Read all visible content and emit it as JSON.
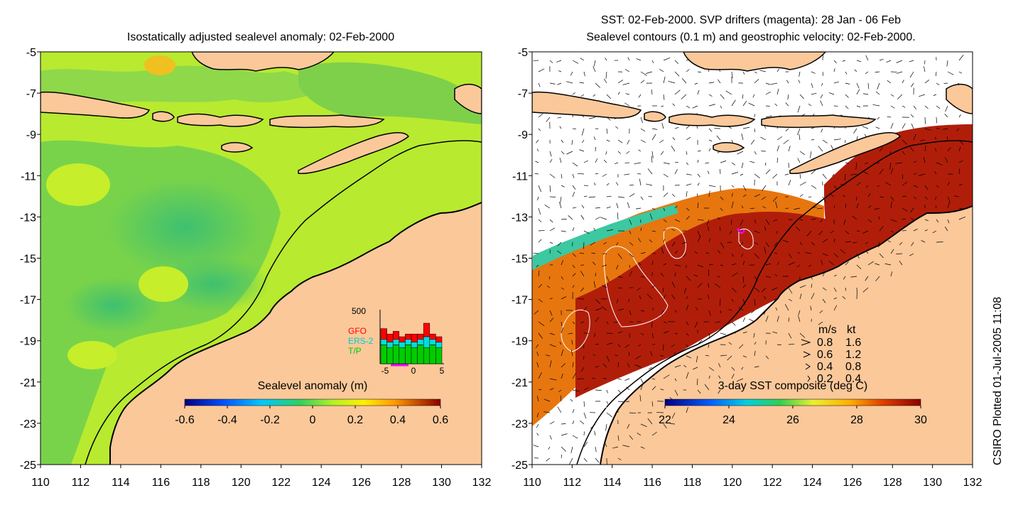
{
  "left_panel": {
    "title": "Isostatically adjusted sealevel anomaly: 02-Feb-2000",
    "colorbar": {
      "label": "Sealevel anomaly (m)",
      "ticks": [
        "-0.6",
        "-0.4",
        "-0.2",
        "0",
        "0.2",
        "0.4",
        "0.6"
      ],
      "range": [
        -0.6,
        0.6
      ]
    },
    "inset": {
      "ymax_label": "500",
      "legend": [
        {
          "label": "GFO",
          "color": "#ff0000"
        },
        {
          "label": "ERS-2",
          "color": "#00cccc"
        },
        {
          "label": "T/P",
          "color": "#00cc00"
        }
      ],
      "x_ticks": [
        "-5",
        "0",
        "5"
      ],
      "bars": [
        {
          "x": -5,
          "tp": 0.35,
          "ers": 0.45,
          "gfo": 0.65
        },
        {
          "x": -4,
          "tp": 0.3,
          "ers": 0.4,
          "gfo": 0.55
        },
        {
          "x": -3,
          "tp": 0.35,
          "ers": 0.45,
          "gfo": 0.6
        },
        {
          "x": -2,
          "tp": 0.3,
          "ers": 0.4,
          "gfo": 0.5
        },
        {
          "x": -1,
          "tp": 0.35,
          "ers": 0.45,
          "gfo": 0.55
        },
        {
          "x": 0,
          "tp": 0.3,
          "ers": 0.4,
          "gfo": 0.55
        },
        {
          "x": 1,
          "tp": 0.35,
          "ers": 0.45,
          "gfo": 0.55
        },
        {
          "x": 2,
          "tp": 0.3,
          "ers": 0.5,
          "gfo": 0.75
        },
        {
          "x": 3,
          "tp": 0.35,
          "ers": 0.45,
          "gfo": 0.55
        },
        {
          "x": 4,
          "tp": 0.3,
          "ers": 0.4,
          "gfo": 0.5
        }
      ]
    }
  },
  "right_panel": {
    "title_line1": "SST: 02-Feb-2000. SVP drifters (magenta): 28 Jan - 06 Feb",
    "title_line2": "Sealevel contours (0.1 m) and geostrophic velocity: 02-Feb-2000.",
    "colorbar": {
      "label": "3-day SST composite (deg C)",
      "ticks": [
        "22",
        "24",
        "26",
        "28",
        "30"
      ],
      "range": [
        22,
        30
      ]
    },
    "velocity_legend": {
      "header_ms": "m/s",
      "header_kt": "kt",
      "rows": [
        {
          "ms": "0.8",
          "kt": "1.6"
        },
        {
          "ms": "0.6",
          "kt": "1.2"
        },
        {
          "ms": "0.4",
          "kt": "0.8"
        },
        {
          "ms": "0.2",
          "kt": "0.4"
        }
      ]
    }
  },
  "axes": {
    "x_ticks": [
      "110",
      "112",
      "114",
      "116",
      "118",
      "120",
      "122",
      "124",
      "126",
      "128",
      "130",
      "132"
    ],
    "y_ticks": [
      "-5",
      "-7",
      "-9",
      "-11",
      "-13",
      "-15",
      "-17",
      "-19",
      "-21",
      "-23",
      "-25"
    ],
    "lon_range": [
      110,
      132
    ],
    "lat_range": [
      -25,
      -5
    ]
  },
  "credit": "CSIRO Plotted 01-Jul-2005 11:08",
  "colors": {
    "land": "#fbc89a",
    "sea_green": "#6fd24a",
    "sea_yellow": "#c6ee2a",
    "sst_red": "#b01e0a",
    "sst_orange": "#e46a10"
  }
}
